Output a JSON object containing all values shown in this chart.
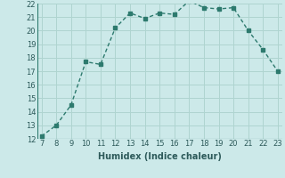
{
  "x": [
    7,
    8,
    9,
    10,
    11,
    12,
    13,
    14,
    15,
    16,
    17,
    18,
    19,
    20,
    21,
    22,
    23
  ],
  "y": [
    12.2,
    13.0,
    14.5,
    17.7,
    17.5,
    20.2,
    21.3,
    20.9,
    21.3,
    21.2,
    22.2,
    21.7,
    21.6,
    21.7,
    20.0,
    18.6,
    17.0
  ],
  "xlabel": "Humidex (Indice chaleur)",
  "ylim": [
    12,
    22
  ],
  "xlim": [
    7,
    23
  ],
  "yticks": [
    12,
    13,
    14,
    15,
    16,
    17,
    18,
    19,
    20,
    21,
    22
  ],
  "xticks": [
    7,
    8,
    9,
    10,
    11,
    12,
    13,
    14,
    15,
    16,
    17,
    18,
    19,
    20,
    21,
    22,
    23
  ],
  "line_color": "#2d7a6e",
  "bg_color": "#cce9e9",
  "grid_color": "#afd4d0",
  "marker": "s",
  "marker_size": 2.5,
  "line_width": 1.0
}
